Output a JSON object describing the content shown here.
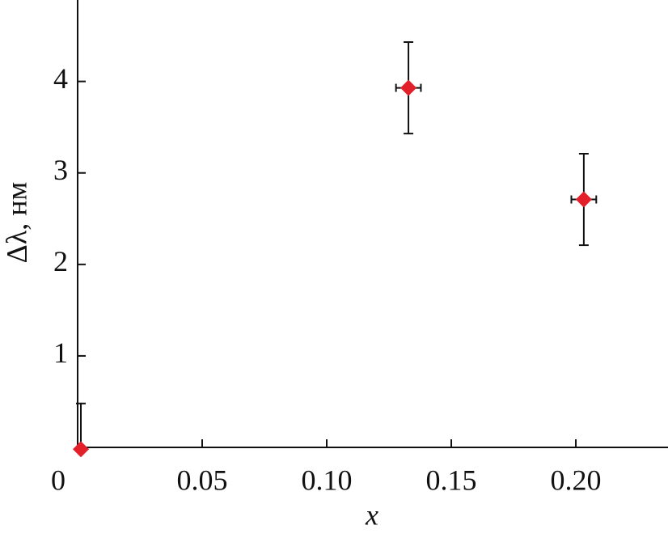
{
  "chart_data": {
    "type": "scatter",
    "x_label": "x",
    "y_label": "Δλ, нм",
    "series": [
      {
        "color": "#e3202a",
        "x": [
          0.0013,
          0.1328,
          0.2032
        ],
        "values": [
          -0.02,
          3.93,
          2.71
        ],
        "xerr": [
          0,
          0.005,
          0.005
        ],
        "yerr": [
          0.5,
          0.5,
          0.5
        ]
      }
    ],
    "xlim": [
      0,
      0.237
    ],
    "ylim": [
      0,
      4.89
    ],
    "xticks": [
      0,
      0.05,
      {
        "value": 0.1,
        "label": "0.10"
      },
      0.15,
      {
        "value": 0.2,
        "label": "0.20"
      }
    ],
    "yticks": [
      1,
      2,
      3,
      4
    ],
    "grid": false
  }
}
